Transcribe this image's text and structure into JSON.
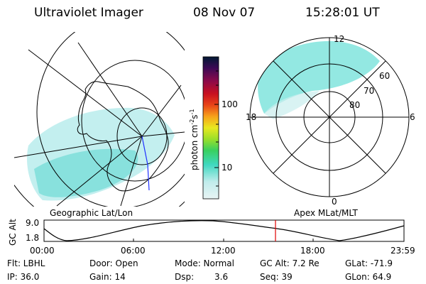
{
  "header": {
    "instrument": "Ultraviolet Imager",
    "date": "08 Nov 07",
    "time": "15:28:01 UT"
  },
  "left_panel": {
    "caption": "Geographic Lat/Lon"
  },
  "right_panel": {
    "caption": "Apex MLat/MLT",
    "mlt_labels": [
      "12",
      "18",
      "6",
      "0"
    ],
    "mlat_labels": [
      "60",
      "70",
      "80"
    ]
  },
  "colorbar": {
    "unit_label": "photon cm",
    "unit_exp1": "-2",
    "unit_mid": "s",
    "unit_exp2": "-1",
    "tick_labels": [
      "100",
      "10"
    ],
    "scale": "log",
    "colors": [
      "#001a33",
      "#3d0a55",
      "#8b0a4a",
      "#c81020",
      "#e84418",
      "#f7a21a",
      "#e8e820",
      "#9adf2a",
      "#38d060",
      "#3fd8c0",
      "#c0ecec",
      "#e8f4f4"
    ]
  },
  "timeline": {
    "ylabel": "GC Alt",
    "ytick_labels": [
      "9.0",
      "1.8"
    ],
    "xtick_labels": [
      "00:00",
      "06:00",
      "12:00",
      "18:00",
      "23:59"
    ],
    "marker_color": "#e00000"
  },
  "status": {
    "flt": "Flt: LBHL",
    "ip": "IP: 36.0",
    "door": "Door: Open",
    "gain": "Gain: 14",
    "mode": "Mode: Normal",
    "dsp_label": "Dsp:",
    "dsp_value": "3.6",
    "gcalt": "GC Alt: 7.2 Re",
    "seq": "Seq: 39",
    "glat": "GLat: -71.9",
    "glon": "GLon: 64.9"
  }
}
